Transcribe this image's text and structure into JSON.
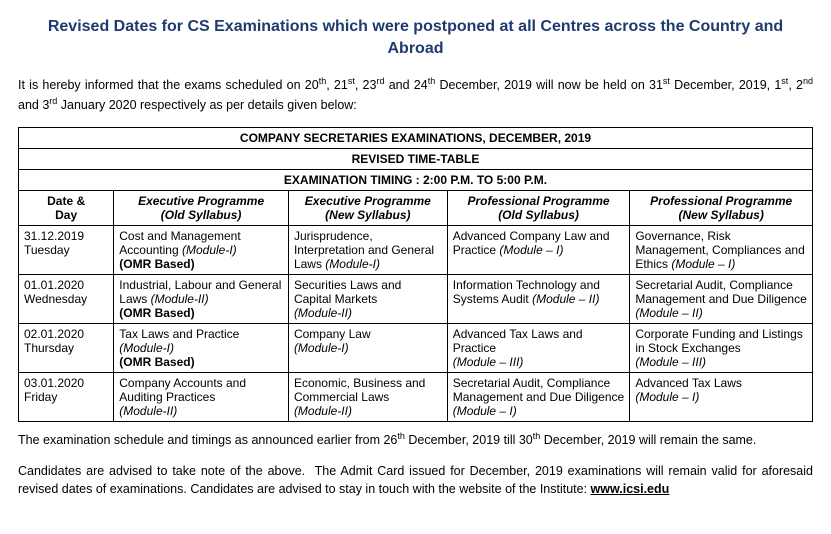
{
  "title": "Revised Dates for CS Examinations which were postponed at all Centres across the Country and Abroad",
  "intro_html": "It is hereby informed that the exams scheduled on 20<sup>th</sup>, 21<sup>st</sup>, 23<sup>rd</sup> and 24<sup>th</sup> December, 2019 will now be held on 31<sup>st</sup> December, 2019, 1<sup>st</sup>, 2<sup>nd</sup> and 3<sup>rd</sup> January 2020 respectively as per details given below:",
  "table": {
    "header1": "COMPANY SECRETARIES EXAMINATIONS, DECEMBER, 2019",
    "header2": "REVISED TIME-TABLE",
    "header3": "EXAMINATION TIMING : 2:00 P.M. TO 5:00 P.M.",
    "columns": [
      "Date & Day",
      "Executive Programme (Old Syllabus)",
      "Executive Programme (New Syllabus)",
      "Professional Programme (Old Syllabus)",
      "Professional Programme (New Syllabus)"
    ],
    "rows": [
      {
        "date": "31.12.2019",
        "day": "Tuesday",
        "c1": "Cost and Management Accounting <span class=\"mod\">(Module-I)</span><br><span class=\"note\">(OMR Based)</span>",
        "c2": "Jurisprudence, Interpretation and General Laws <span class=\"mod\">(Module-I)</span>",
        "c3": "Advanced Company Law and Practice <span class=\"mod\">(Module – I)</span>",
        "c4": "Governance, Risk Management, Compliances and Ethics <span class=\"mod\">(Module – I)</span>"
      },
      {
        "date": "01.01.2020",
        "day": "Wednesday",
        "c1": "Industrial, Labour and General Laws <span class=\"mod\">(Module-II)</span><br><span class=\"note\">(OMR Based)</span>",
        "c2": "Securities Laws and Capital Markets<br><span class=\"mod\">(Module-II)</span>",
        "c3": "Information Technology and Systems Audit <span class=\"mod\">(Module – II)</span>",
        "c4": "Secretarial Audit, Compliance Management and Due Diligence <span class=\"mod\">(Module – II)</span>"
      },
      {
        "date": "02.01.2020",
        "day": "Thursday",
        "c1": "Tax Laws and Practice<br><span class=\"mod\">(Module-I)</span><br><span class=\"note\">(OMR Based)</span>",
        "c2": "Company Law<br><span class=\"mod\">(Module-I)</span>",
        "c3": "Advanced Tax Laws and Practice<br><span class=\"mod\">(Module – III)</span>",
        "c4": "Corporate Funding and Listings in Stock Exchanges<br><span class=\"mod\">(Module – III)</span>"
      },
      {
        "date": "03.01.2020",
        "day": "Friday",
        "c1": "Company Accounts and Auditing Practices<br><span class=\"mod\">(Module-II)</span>",
        "c2": "Economic, Business and Commercial Laws<br><span class=\"mod\">(Module-II)</span>",
        "c3": "Secretarial Audit, Compliance Management and Due Diligence <span class=\"mod\">(Module – I)</span>",
        "c4": "Advanced Tax Laws<br><span class=\"mod\">(Module – I)</span>"
      }
    ]
  },
  "footer1_html": "The examination schedule and timings as announced earlier from 26<sup>th</sup> December, 2019 till 30<sup>th</sup> December, 2019 will remain the same.",
  "footer2_html": "Candidates are advised to take note of the above.&nbsp; The Admit Card issued for December, 2019 examinations will remain valid for aforesaid revised dates of examinations. Candidates are advised to stay in touch with the website of the Institute: <b><u><a data-name=\"institute-link\" data-interactable=\"true\" href=\"#\">www.icsi.edu</a></u></b>",
  "colors": {
    "title": "#1f3a6e",
    "text": "#000000",
    "border": "#000000",
    "background": "#ffffff"
  },
  "layout": {
    "col_widths_pct": [
      12,
      22,
      20,
      23,
      23
    ]
  }
}
